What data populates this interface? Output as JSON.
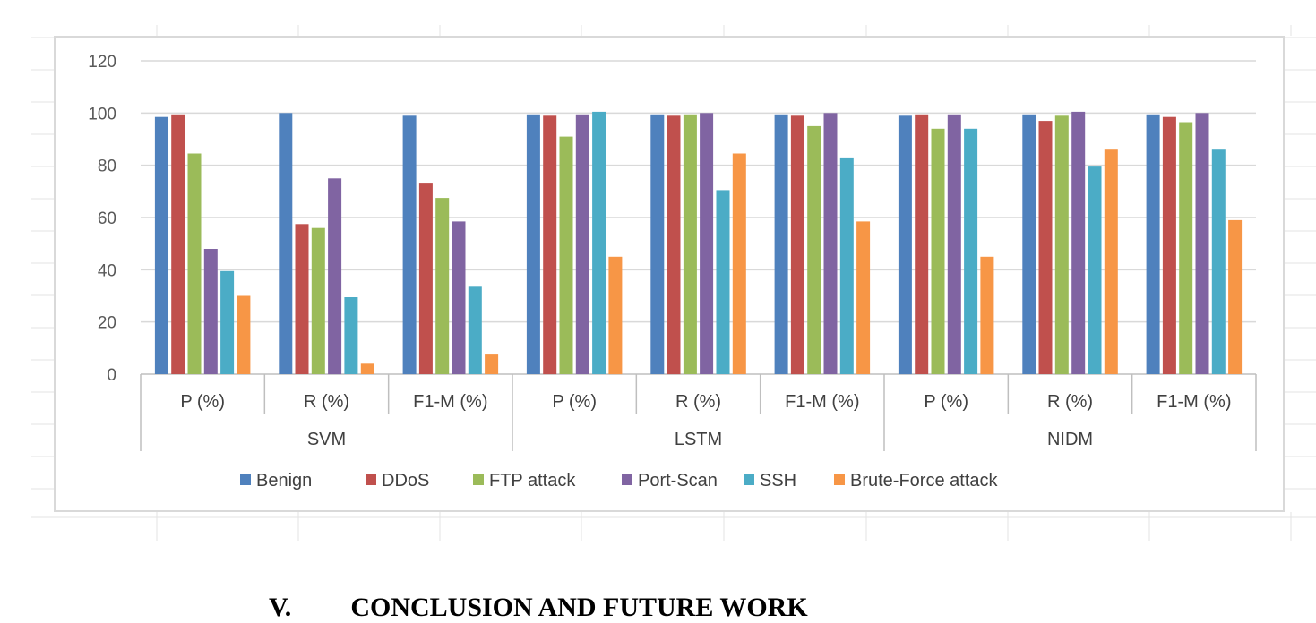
{
  "chart_data": {
    "type": "bar",
    "title": "",
    "xlabel": "",
    "ylabel": "",
    "ylim": [
      0,
      120
    ],
    "y_ticks": [
      0,
      20,
      40,
      60,
      80,
      100,
      120
    ],
    "grid": true,
    "legend_position": "bottom",
    "groups": [
      {
        "name": "SVM",
        "categories": [
          "P (%)",
          "R (%)",
          "F1-M (%)"
        ]
      },
      {
        "name": "LSTM",
        "categories": [
          "P (%)",
          "R (%)",
          "F1-M (%)"
        ]
      },
      {
        "name": "NIDM",
        "categories": [
          "P (%)",
          "R (%)",
          "F1-M (%)"
        ]
      }
    ],
    "categories": [
      "P (%)",
      "R (%)",
      "F1-M (%)",
      "P (%)",
      "R (%)",
      "F1-M (%)",
      "P (%)",
      "R (%)",
      "F1-M (%)"
    ],
    "series": [
      {
        "name": "Benign",
        "color": "#4f81bd",
        "values": [
          98.5,
          100,
          99,
          99.5,
          99.5,
          99.5,
          99,
          99.5,
          99.5
        ]
      },
      {
        "name": "DDoS",
        "color": "#c0504d",
        "values": [
          99.5,
          57.5,
          73,
          99,
          99,
          99,
          99.5,
          97,
          98.5
        ]
      },
      {
        "name": "FTP attack",
        "color": "#9bbb59",
        "values": [
          84.5,
          56,
          67.5,
          91,
          99.5,
          95,
          94,
          99,
          96.5
        ]
      },
      {
        "name": "Port-Scan",
        "color": "#8064a2",
        "values": [
          48,
          75,
          58.5,
          99.5,
          100,
          100,
          99.5,
          100.5,
          100
        ]
      },
      {
        "name": "SSH",
        "color": "#4bacc6",
        "values": [
          39.5,
          29.5,
          33.5,
          100.5,
          70.5,
          83,
          94,
          79.5,
          86
        ]
      },
      {
        "name": "Brute-Force attack",
        "color": "#f79646",
        "values": [
          30,
          4,
          7.5,
          45,
          84.5,
          58.5,
          45,
          86,
          59
        ]
      }
    ]
  },
  "page": {
    "heading_number": "V.",
    "heading_text": "CONCLUSION AND FUTURE WORK"
  },
  "colors": {
    "gridline": "#d9d9d9",
    "axis": "#bfbfbf",
    "sheet_gridline": "#e3e3e3"
  }
}
